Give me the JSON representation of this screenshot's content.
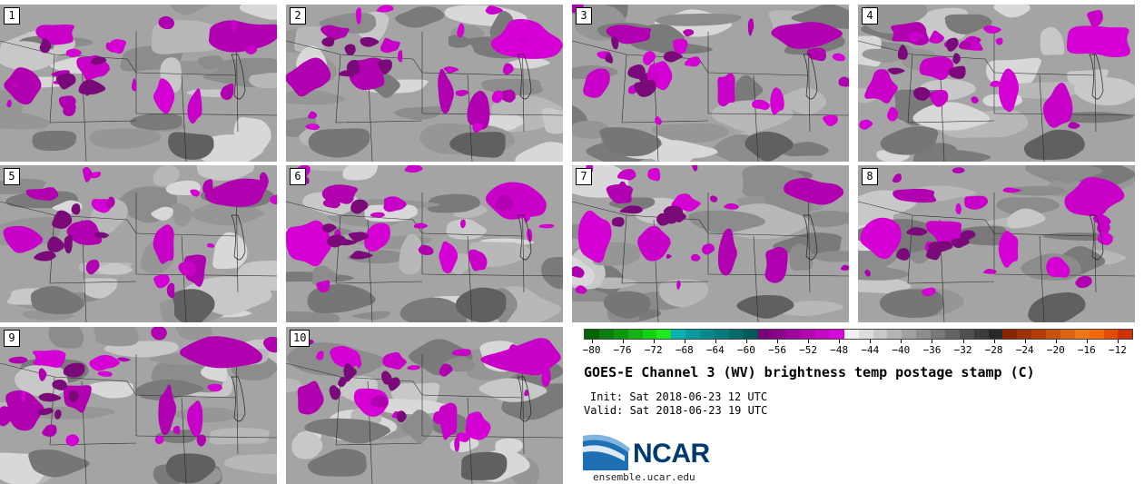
{
  "panels": [
    {
      "label": "1"
    },
    {
      "label": "2"
    },
    {
      "label": "3"
    },
    {
      "label": "4"
    },
    {
      "label": "5"
    },
    {
      "label": "6"
    },
    {
      "label": "7"
    },
    {
      "label": "8"
    },
    {
      "label": "9"
    },
    {
      "label": "10"
    }
  ],
  "colorbar": {
    "colors": [
      "#006400",
      "#0a7d0a",
      "#0a960a",
      "#12b212",
      "#12d212",
      "#1aee1a",
      "#00b4b4",
      "#009e9e",
      "#008a8a",
      "#007a7a",
      "#006a6a",
      "#005a5a",
      "#7a007a",
      "#8c008c",
      "#a000a0",
      "#b400b4",
      "#c800c8",
      "#dc00dc",
      "#f0f0f0",
      "#dcdcdc",
      "#c8c8c8",
      "#b4b4b4",
      "#a0a0a0",
      "#8c8c8c",
      "#787878",
      "#646464",
      "#505050",
      "#3c3c3c",
      "#282828",
      "#8b2500",
      "#a0300a",
      "#b43c0a",
      "#c8500a",
      "#dc6414",
      "#f07814",
      "#ff6a00",
      "#e64a00",
      "#d23000"
    ],
    "ticks": [
      "−80",
      "−76",
      "−72",
      "−68",
      "−64",
      "−60",
      "−56",
      "−52",
      "−48",
      "−44",
      "−40",
      "−36",
      "−32",
      "−28",
      "−24",
      "−20",
      "−16",
      "−12"
    ],
    "range": [
      -81,
      -10
    ]
  },
  "title": "GOES-E Channel 3 (WV) brightness temp postage stamp (C)",
  "init_text": "Init: Sat 2018-06-23 12 UTC",
  "valid_text": "Valid: Sat 2018-06-23 19 UTC",
  "logo": {
    "text": "NCAR",
    "color": "#003a70"
  },
  "url": "ensemble.ucar.edu"
}
